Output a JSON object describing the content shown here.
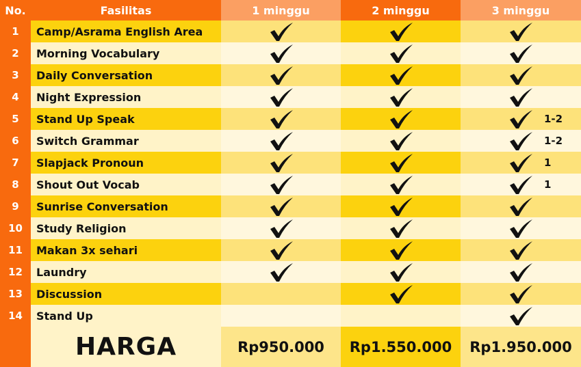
{
  "header": {
    "no": "No.",
    "fasilitas": "Fasilitas",
    "plans": [
      "1 minggu",
      "2 minggu",
      "3 minggu"
    ]
  },
  "colors": {
    "orange": "#f86a0e",
    "light_orange": "#fb9f62",
    "yellow": "#fcd20e",
    "cream": "#fff3c8"
  },
  "check_icon": "checkmark-icon",
  "rows": [
    {
      "no": "1",
      "name": "Camp/Asrama English Area",
      "checks": [
        true,
        true,
        true
      ],
      "note": ""
    },
    {
      "no": "2",
      "name": "Morning Vocabulary",
      "checks": [
        true,
        true,
        true
      ],
      "note": ""
    },
    {
      "no": "3",
      "name": "Daily Conversation",
      "checks": [
        true,
        true,
        true
      ],
      "note": ""
    },
    {
      "no": "4",
      "name": "Night Expression",
      "checks": [
        true,
        true,
        true
      ],
      "note": ""
    },
    {
      "no": "5",
      "name": "Stand Up Speak",
      "checks": [
        true,
        true,
        true
      ],
      "note": "1-2"
    },
    {
      "no": "6",
      "name": "Switch Grammar",
      "checks": [
        true,
        true,
        true
      ],
      "note": "1-2"
    },
    {
      "no": "7",
      "name": "Slapjack Pronoun",
      "checks": [
        true,
        true,
        true
      ],
      "note": "1"
    },
    {
      "no": "8",
      "name": "Shout Out Vocab",
      "checks": [
        true,
        true,
        true
      ],
      "note": "1"
    },
    {
      "no": "9",
      "name": "Sunrise Conversation",
      "checks": [
        true,
        true,
        true
      ],
      "note": ""
    },
    {
      "no": "10",
      "name": "Study Religion",
      "checks": [
        true,
        true,
        true
      ],
      "note": ""
    },
    {
      "no": "11",
      "name": "Makan 3x sehari",
      "checks": [
        true,
        true,
        true
      ],
      "note": ""
    },
    {
      "no": "12",
      "name": "Laundry",
      "checks": [
        true,
        true,
        true
      ],
      "note": ""
    },
    {
      "no": "13",
      "name": "Discussion",
      "checks": [
        false,
        true,
        true
      ],
      "note": ""
    },
    {
      "no": "14",
      "name": "Stand Up",
      "checks": [
        false,
        false,
        true
      ],
      "note": ""
    }
  ],
  "harga": {
    "label": "HARGA",
    "prices": [
      "Rp950.000",
      "Rp1.550.000",
      "Rp1.950.000"
    ]
  }
}
